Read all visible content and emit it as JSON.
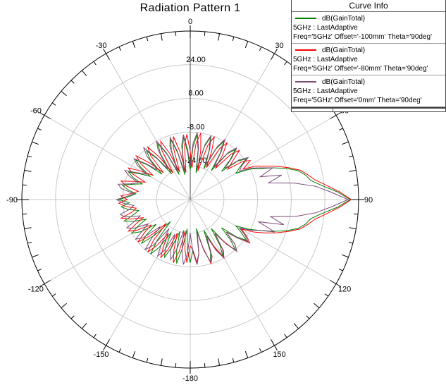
{
  "title": "Radiation Pattern 1",
  "legend": {
    "title": "Curve Info",
    "entries": [
      {
        "color": "#008000",
        "label": "dB(GainTotal)",
        "line2": "5GHz : LastAdaptive",
        "line3": "Freq='5GHz' Offset='-100mm' Theta='90deg'"
      },
      {
        "color": "#ff0000",
        "label": "dB(GainTotal)",
        "line2": "5GHz : LastAdaptive",
        "line3": "Freq='5GHz' Offset='-80mm' Theta='90deg'"
      },
      {
        "color": "#7a4a78",
        "label": "dB(GainTotal)",
        "line2": "5GHz : LastAdaptive",
        "line3": "Freq='5GHz' Offset='0mm' Theta='90deg'"
      }
    ]
  },
  "chart_data": {
    "type": "line",
    "subtype": "polar",
    "title": "Radiation Pattern 1",
    "quantity": "dB(GainTotal)",
    "radial_axis": {
      "min": -40,
      "max": 40,
      "gridlines": [
        {
          "value": 24,
          "label": "24.00"
        },
        {
          "value": 8,
          "label": "8.00"
        },
        {
          "value": -8,
          "label": "-8.00"
        },
        {
          "value": -24,
          "label": "-24.00"
        }
      ]
    },
    "angular_axis": {
      "major_step_deg": 30,
      "minor_tick_deg": 5,
      "labels": [
        {
          "angle": 0,
          "text": "0"
        },
        {
          "angle": 30,
          "text": "30"
        },
        {
          "angle": 60,
          "text": "60"
        },
        {
          "angle": 90,
          "text": "90"
        },
        {
          "angle": 120,
          "text": "120"
        },
        {
          "angle": 150,
          "text": "150"
        },
        {
          "angle": 180,
          "text": "-180"
        },
        {
          "angle": -150,
          "text": "-150"
        },
        {
          "angle": -120,
          "text": "-120"
        },
        {
          "angle": -90,
          "text": "-90"
        },
        {
          "angle": -60,
          "text": "-60"
        },
        {
          "angle": -30,
          "text": "-30"
        }
      ]
    },
    "angle_start": -180,
    "angle_step": 3,
    "series": [
      {
        "name": "dB(GainTotal) Offset='-100mm'",
        "color": "#008000",
        "values": [
          -10,
          -16,
          -26,
          -17,
          -9,
          -15,
          -24,
          -16,
          -10,
          -14,
          -22,
          -13,
          -8,
          -15,
          -26,
          -16,
          -9,
          -13,
          -20,
          -12,
          -8,
          -12,
          -17,
          -11,
          -7,
          -12,
          -15,
          -10,
          -7,
          -11,
          -6,
          -11,
          -14,
          -10,
          -7,
          -12,
          -16,
          -11,
          -8,
          -13,
          -18,
          -12,
          -8,
          -14,
          -22,
          -13,
          -9,
          -15,
          -25,
          -14,
          -9,
          -16,
          -27,
          -15,
          -10,
          -17,
          -28,
          -16,
          -10,
          -18,
          -26,
          -15,
          -9,
          -16,
          -27,
          -14,
          -9,
          -15,
          -24,
          -13,
          -8,
          -14,
          -23,
          -12,
          -8,
          -13,
          -20,
          -11,
          -7,
          -12,
          -15,
          -8,
          -4,
          2,
          8,
          13,
          16,
          18,
          23,
          30,
          36,
          30,
          23,
          18,
          16,
          13,
          8,
          2,
          -4,
          -9,
          -15,
          -11,
          -7,
          -12,
          -20,
          -13,
          -8,
          -13,
          -23,
          -14,
          -9,
          -14,
          -24,
          -13,
          -9,
          -15,
          -26,
          -14,
          -9,
          -16,
          -10
        ]
      },
      {
        "name": "dB(GainTotal) Offset='-80mm'",
        "color": "#ff0000",
        "values": [
          -18,
          -10,
          -16,
          -25,
          -15,
          -9,
          -15,
          -23,
          -14,
          -9,
          -15,
          -21,
          -13,
          -8,
          -14,
          -24,
          -14,
          -8,
          -13,
          -18,
          -11,
          -7,
          -12,
          -16,
          -10,
          -6,
          -12,
          -14,
          -9,
          -6,
          -10,
          -7,
          -12,
          -15,
          -9,
          -6,
          -12,
          -17,
          -10,
          -7,
          -13,
          -19,
          -11,
          -7,
          -14,
          -22,
          -12,
          -8,
          -15,
          -25,
          -13,
          -9,
          -16,
          -26,
          -14,
          -9,
          -17,
          -27,
          -14,
          -9,
          -17,
          -25,
          -13,
          -8,
          -16,
          -26,
          -13,
          -8,
          -15,
          -23,
          -12,
          -8,
          -14,
          -21,
          -11,
          -7,
          -13,
          -17,
          -9,
          -6,
          -11,
          -5,
          -1,
          4,
          9,
          14,
          17,
          20,
          25,
          31,
          36.5,
          31,
          25,
          20,
          17,
          14,
          9,
          4,
          -1,
          -6,
          -12,
          -8,
          -5,
          -11,
          -17,
          -10,
          -7,
          -14,
          -20,
          -11,
          -8,
          -15,
          -21,
          -11,
          -8,
          -16,
          -24,
          -14,
          -10,
          -16,
          -18
        ]
      },
      {
        "name": "dB(GainTotal) Offset='0mm'",
        "color": "#7a4a78",
        "values": [
          -24,
          -14,
          -9,
          -15,
          -25,
          -16,
          -10,
          -14,
          -22,
          -13,
          -9,
          -15,
          -23,
          -12,
          -8,
          -14,
          -21,
          -11,
          -8,
          -13,
          -17,
          -10,
          -7,
          -12,
          -15,
          -8,
          -6,
          -11,
          -13,
          -8,
          -5,
          -10,
          -13,
          -7,
          -5,
          -11,
          -14,
          -9,
          -6,
          -12,
          -16,
          -10,
          -7,
          -13,
          -19,
          -11,
          -7,
          -14,
          -22,
          -12,
          -8,
          -15,
          -25,
          -13,
          -9,
          -16,
          -26,
          -14,
          -9,
          -16,
          -24,
          -13,
          -8,
          -15,
          -25,
          -13,
          -8,
          -14,
          -22,
          -12,
          -7,
          -13,
          -21,
          -11,
          -7,
          -12,
          -18,
          -10,
          -6,
          -11,
          -13,
          -7,
          -3,
          2,
          -5,
          5,
          -2,
          10,
          20,
          27,
          35,
          27,
          20,
          11,
          -1,
          6,
          -6,
          3,
          -4,
          -8,
          -13,
          -9,
          -6,
          -11,
          -17,
          -10,
          -7,
          -13,
          -20,
          -12,
          -8,
          -13,
          -21,
          -12,
          -9,
          -15,
          -24,
          -14,
          -9,
          -15,
          -24
        ]
      }
    ]
  }
}
